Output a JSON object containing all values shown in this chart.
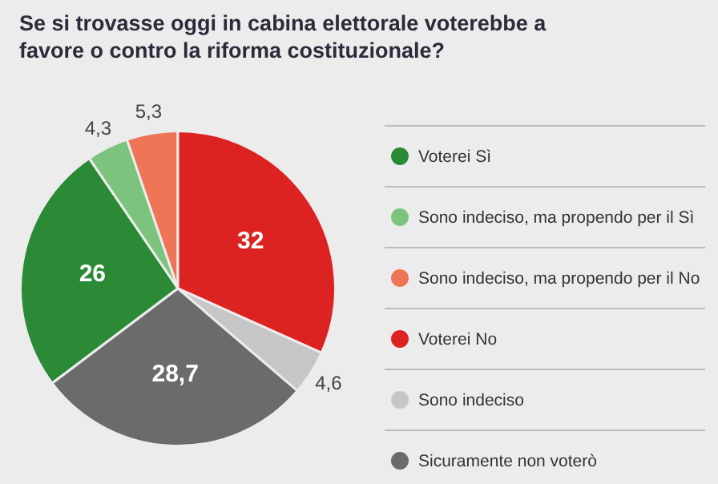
{
  "chart_data": {
    "type": "pie",
    "title": "Se si trovasse oggi in cabina elettorale voterebbe a favore o contro la riforma costituzionale?",
    "categories": [
      "Voterei Sì",
      "Sono indeciso, ma propendo per il Sì",
      "Sono indeciso, ma propendo per il No",
      "Voterei No",
      "Sono indeciso",
      "Sicuramente non voterò"
    ],
    "values": [
      26,
      4.3,
      5.3,
      32,
      4.6,
      28.7
    ],
    "value_labels": [
      "26",
      "4,3",
      "5,3",
      "32",
      "4,6",
      "28,7"
    ],
    "colors": [
      "#2a8a36",
      "#7cc47e",
      "#ee7556",
      "#dd2222",
      "#c6c6c6",
      "#6b6b6b"
    ],
    "legend": "right"
  }
}
